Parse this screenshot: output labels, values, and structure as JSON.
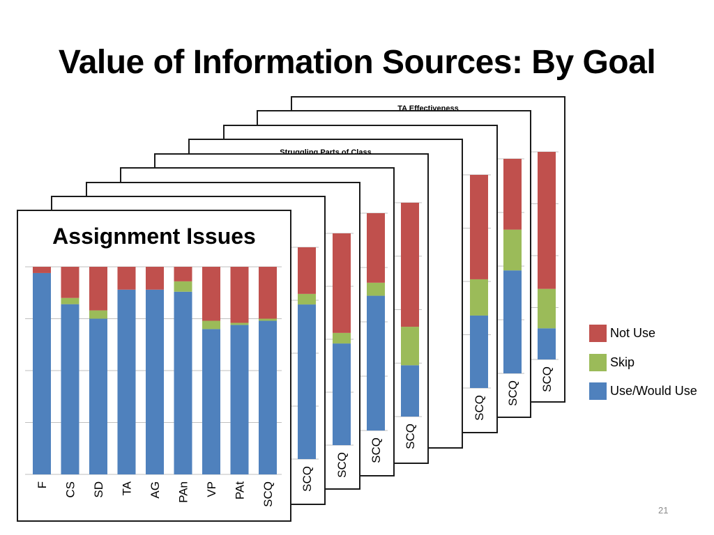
{
  "title": "Value of Information Sources: By Goal",
  "slide_number": "21",
  "colors": {
    "use": "#4f81bd",
    "skip": "#9bbb59",
    "not_use": "#c0504d"
  },
  "legend": [
    {
      "label": "Not Use",
      "color": "#c0504d"
    },
    {
      "label": "Skip",
      "color": "#9bbb59"
    },
    {
      "label": "Use/Would Use",
      "color": "#4f81bd"
    }
  ],
  "chart_data": [
    {
      "type": "bar",
      "stacked": true,
      "title": "TA Effectiveness",
      "categories": [
        "SCQ"
      ],
      "series": [
        {
          "name": "Use/Would Use",
          "values": [
            15
          ]
        },
        {
          "name": "Skip",
          "values": [
            19
          ]
        },
        {
          "name": "Not Use",
          "values": [
            66
          ]
        }
      ]
    },
    {
      "type": "bar",
      "stacked": true,
      "title": "",
      "categories": [
        "SCQ"
      ],
      "series": [
        {
          "name": "Use/Would Use",
          "values": [
            48
          ]
        },
        {
          "name": "Skip",
          "values": [
            19
          ]
        },
        {
          "name": "Not Use",
          "values": [
            33
          ]
        }
      ]
    },
    {
      "type": "bar",
      "stacked": true,
      "title": "",
      "categories": [
        "SCQ"
      ],
      "series": [
        {
          "name": "Use/Would Use",
          "values": [
            34
          ]
        },
        {
          "name": "Skip",
          "values": [
            17
          ]
        },
        {
          "name": "Not Use",
          "values": [
            49
          ]
        }
      ]
    },
    {
      "type": "bar",
      "stacked": true,
      "title": "Struggling Parts of Class",
      "categories": [
        "SCQ"
      ],
      "series": [
        {
          "name": "Use/Would Use",
          "values": [
            63
          ]
        },
        {
          "name": "Skip",
          "values": [
            14
          ]
        },
        {
          "name": "Not Use",
          "values": [
            23
          ]
        }
      ]
    },
    {
      "type": "bar",
      "stacked": true,
      "title": "",
      "categories": [
        "SCQ"
      ],
      "series": [
        {
          "name": "Use/Would Use",
          "values": [
            24
          ]
        },
        {
          "name": "Skip",
          "values": [
            18
          ]
        },
        {
          "name": "Not Use",
          "values": [
            58
          ]
        }
      ]
    },
    {
      "type": "bar",
      "stacked": true,
      "title": "",
      "categories": [
        "SCQ"
      ],
      "series": [
        {
          "name": "Use/Would Use",
          "values": [
            62
          ]
        },
        {
          "name": "Skip",
          "values": [
            6
          ]
        },
        {
          "name": "Not Use",
          "values": [
            32
          ]
        }
      ]
    },
    {
      "type": "bar",
      "stacked": true,
      "title": "",
      "categories": [
        "SCQ"
      ],
      "series": [
        {
          "name": "Use/Would Use",
          "values": [
            48
          ]
        },
        {
          "name": "Skip",
          "values": [
            5
          ]
        },
        {
          "name": "Not Use",
          "values": [
            47
          ]
        }
      ]
    },
    {
      "type": "bar",
      "stacked": true,
      "title": "",
      "categories": [
        "SCQ"
      ],
      "series": [
        {
          "name": "Use/Would Use",
          "values": [
            73
          ]
        },
        {
          "name": "Skip",
          "values": [
            5
          ]
        },
        {
          "name": "Not Use",
          "values": [
            22
          ]
        }
      ]
    },
    {
      "type": "bar",
      "stacked": true,
      "title": "Assignment Issues",
      "categories": [
        "F",
        "CS",
        "SD",
        "TA",
        "AG",
        "PAn",
        "VP",
        "PAt",
        "SCQ"
      ],
      "ylim": [
        0,
        100
      ],
      "series": [
        {
          "name": "Use/Would Use",
          "values": [
            97,
            82,
            75,
            89,
            89,
            88,
            70,
            72,
            74
          ]
        },
        {
          "name": "Skip",
          "values": [
            0,
            3,
            4,
            0,
            0,
            5,
            4,
            1,
            1
          ]
        },
        {
          "name": "Not Use",
          "values": [
            3,
            15,
            21,
            11,
            11,
            7,
            26,
            27,
            25
          ]
        }
      ]
    }
  ]
}
